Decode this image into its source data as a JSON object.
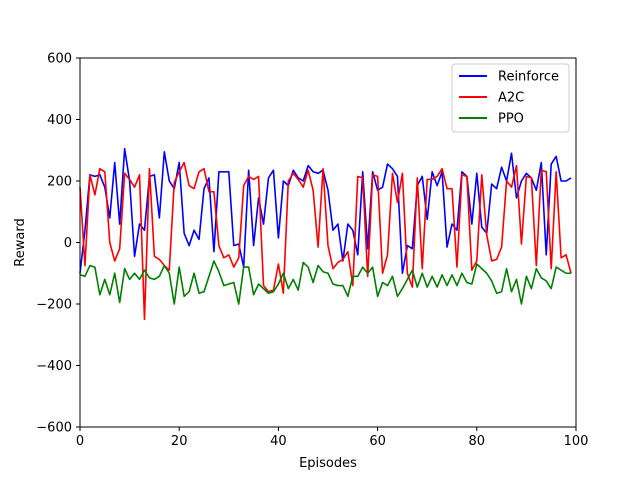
{
  "chart_data": {
    "type": "line",
    "title": "",
    "xlabel": "Episodes",
    "ylabel": "Reward",
    "xlim": [
      0,
      100
    ],
    "ylim": [
      -600,
      600
    ],
    "xticks": [
      0,
      20,
      40,
      60,
      80,
      100
    ],
    "yticks": [
      -600,
      -400,
      -200,
      0,
      200,
      400,
      600
    ],
    "ytick_labels": [
      "−600",
      "−400",
      "−200",
      "0",
      "200",
      "400",
      "600"
    ],
    "legend_position": "top-right",
    "grid": false,
    "x": [
      0,
      1,
      2,
      3,
      4,
      5,
      6,
      7,
      8,
      9,
      10,
      11,
      12,
      13,
      14,
      15,
      16,
      17,
      18,
      19,
      20,
      21,
      22,
      23,
      24,
      25,
      26,
      27,
      28,
      29,
      30,
      31,
      32,
      33,
      34,
      35,
      36,
      37,
      38,
      39,
      40,
      41,
      42,
      43,
      44,
      45,
      46,
      47,
      48,
      49,
      50,
      51,
      52,
      53,
      54,
      55,
      56,
      57,
      58,
      59,
      60,
      61,
      62,
      63,
      64,
      65,
      66,
      67,
      68,
      69,
      70,
      71,
      72,
      73,
      74,
      75,
      76,
      77,
      78,
      79,
      80,
      81,
      82,
      83,
      84,
      85,
      86,
      87,
      88,
      89,
      90,
      91,
      92,
      93,
      94,
      95,
      96,
      97,
      98,
      99
    ],
    "series": [
      {
        "name": "Reinforce",
        "color": "#0000ff",
        "values": [
          -100,
          40,
          220,
          215,
          220,
          180,
          80,
          260,
          60,
          305,
          200,
          -45,
          60,
          40,
          215,
          220,
          80,
          295,
          200,
          175,
          260,
          30,
          -10,
          40,
          10,
          175,
          210,
          -30,
          230,
          230,
          230,
          -10,
          -5,
          -80,
          235,
          -10,
          145,
          60,
          210,
          235,
          15,
          200,
          185,
          235,
          210,
          200,
          250,
          230,
          225,
          235,
          170,
          40,
          60,
          -60,
          60,
          40,
          -40,
          230,
          -20,
          230,
          170,
          180,
          255,
          240,
          215,
          -100,
          -10,
          -20,
          185,
          215,
          75,
          230,
          185,
          230,
          -15,
          60,
          40,
          230,
          215,
          60,
          225,
          50,
          30,
          190,
          175,
          245,
          200,
          290,
          145,
          200,
          225,
          210,
          170,
          260,
          -40,
          255,
          280,
          200,
          200,
          210
        ]
      },
      {
        "name": "A2C",
        "color": "#ff0000",
        "values": [
          180,
          -75,
          220,
          155,
          240,
          230,
          0,
          -60,
          -20,
          225,
          205,
          180,
          220,
          -250,
          240,
          -45,
          -55,
          -75,
          -90,
          195,
          230,
          260,
          185,
          175,
          230,
          240,
          165,
          165,
          -10,
          -50,
          -40,
          -80,
          -50,
          185,
          215,
          205,
          215,
          -140,
          -160,
          -155,
          -70,
          -165,
          200,
          225,
          205,
          180,
          235,
          170,
          -15,
          240,
          -10,
          -85,
          -65,
          -55,
          -30,
          -140,
          215,
          210,
          -110,
          220,
          215,
          -100,
          -40,
          225,
          130,
          225,
          -100,
          -145,
          210,
          -85,
          205,
          205,
          215,
          240,
          175,
          175,
          -80,
          220,
          215,
          -90,
          -60,
          220,
          25,
          -60,
          -55,
          -15,
          200,
          180,
          250,
          -5,
          215,
          210,
          -75,
          235,
          230,
          -85,
          230,
          -50,
          -40,
          -100
        ]
      },
      {
        "name": "PPO",
        "color": "#008000",
        "values": [
          -105,
          -110,
          -75,
          -80,
          -170,
          -120,
          -170,
          -100,
          -195,
          -85,
          -120,
          -100,
          -120,
          -90,
          -115,
          -120,
          -110,
          -75,
          -100,
          -200,
          -80,
          -175,
          -160,
          -100,
          -165,
          -160,
          -110,
          -60,
          -95,
          -140,
          -135,
          -130,
          -200,
          -80,
          -80,
          -170,
          -135,
          -150,
          -165,
          -160,
          -135,
          -100,
          -150,
          -120,
          -155,
          -65,
          -80,
          -130,
          -75,
          -95,
          -100,
          -135,
          -140,
          -140,
          -175,
          -110,
          -110,
          -80,
          -100,
          -80,
          -175,
          -130,
          -140,
          -110,
          -175,
          -150,
          -120,
          -90,
          -145,
          -100,
          -145,
          -110,
          -145,
          -105,
          -140,
          -105,
          -140,
          -100,
          -130,
          -135,
          -70,
          -85,
          -100,
          -125,
          -165,
          -160,
          -85,
          -160,
          -120,
          -200,
          -110,
          -150,
          -85,
          -115,
          -125,
          -150,
          -80,
          -90,
          -100,
          -100
        ]
      }
    ]
  }
}
